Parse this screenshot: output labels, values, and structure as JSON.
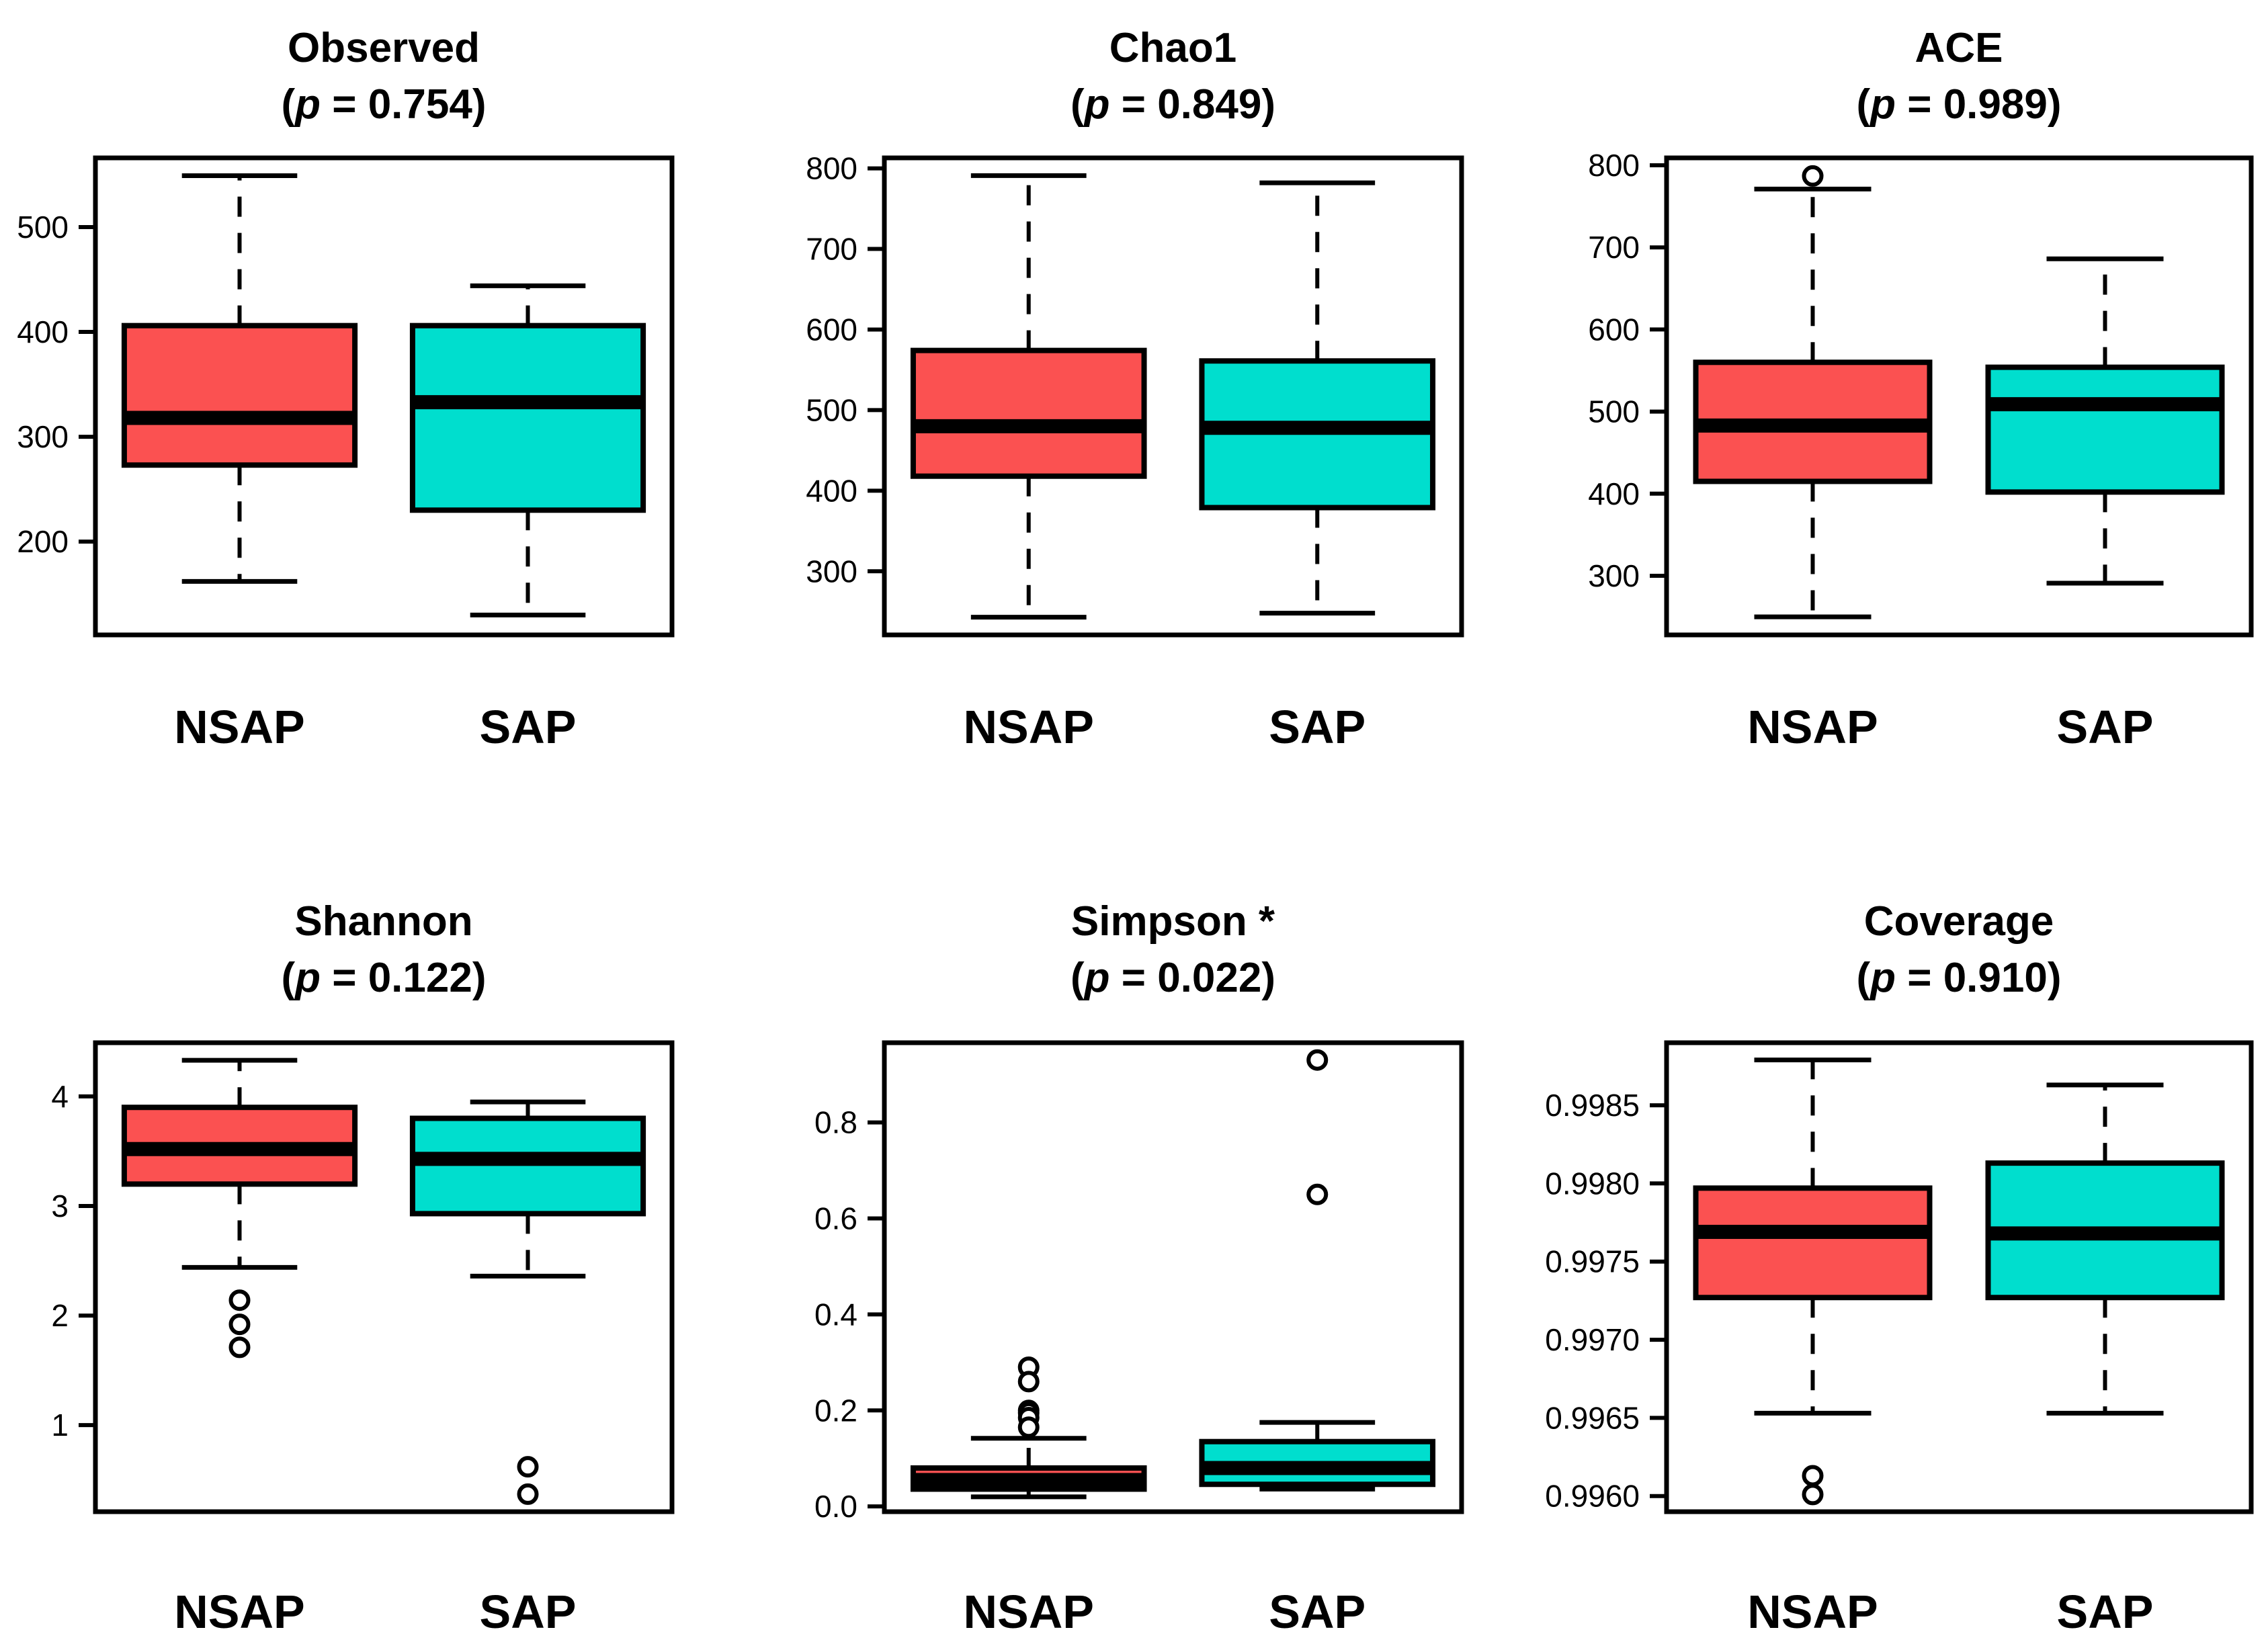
{
  "colors": {
    "nsap_fill": "#FB5151",
    "sap_fill": "#00DECE",
    "stroke": "#000000",
    "background": "#FFFFFF"
  },
  "chart_data": [
    {
      "type": "box",
      "id": "observed",
      "title": "Observed",
      "p_open": "(",
      "p_var": "p",
      "p_rest": " = 0.754)",
      "categories": [
        "NSAP",
        "SAP"
      ],
      "ylim": [
        111,
        566
      ],
      "yticks": [
        200,
        300,
        400,
        500
      ],
      "ytick_labels": [
        "200",
        "300",
        "400",
        "500"
      ],
      "grid": false,
      "series": [
        {
          "name": "NSAP",
          "color": "#FB5151",
          "whisker_low": 162,
          "q1": 273,
          "median": 318,
          "q3": 406,
          "whisker_high": 549,
          "outliers": []
        },
        {
          "name": "SAP",
          "color": "#00DECE",
          "whisker_low": 130,
          "q1": 230,
          "median": 333,
          "q3": 406,
          "whisker_high": 444,
          "outliers": []
        }
      ]
    },
    {
      "type": "box",
      "id": "chao1",
      "title": "Chao1",
      "p_open": "(",
      "p_var": "p",
      "p_rest": " = 0.849)",
      "categories": [
        "NSAP",
        "SAP"
      ],
      "ylim": [
        221,
        813
      ],
      "yticks": [
        300,
        400,
        500,
        600,
        700,
        800
      ],
      "ytick_labels": [
        "300",
        "400",
        "500",
        "600",
        "700",
        "800"
      ],
      "grid": false,
      "series": [
        {
          "name": "NSAP",
          "color": "#FB5151",
          "whisker_low": 243,
          "q1": 418,
          "median": 480,
          "q3": 574,
          "whisker_high": 791,
          "outliers": []
        },
        {
          "name": "SAP",
          "color": "#00DECE",
          "whisker_low": 248,
          "q1": 379,
          "median": 478,
          "q3": 561,
          "whisker_high": 782,
          "outliers": []
        }
      ]
    },
    {
      "type": "box",
      "id": "ace",
      "title": "ACE",
      "p_open": "(",
      "p_var": "p",
      "p_rest": " = 0.989)",
      "categories": [
        "NSAP",
        "SAP"
      ],
      "ylim": [
        228,
        809
      ],
      "yticks": [
        300,
        400,
        500,
        600,
        700,
        800
      ],
      "ytick_labels": [
        "300",
        "400",
        "500",
        "600",
        "700",
        "800"
      ],
      "grid": false,
      "series": [
        {
          "name": "NSAP",
          "color": "#FB5151",
          "whisker_low": 250,
          "q1": 415,
          "median": 483,
          "q3": 560,
          "whisker_high": 771,
          "outliers": [
            787
          ]
        },
        {
          "name": "SAP",
          "color": "#00DECE",
          "whisker_low": 291,
          "q1": 402,
          "median": 509,
          "q3": 554,
          "whisker_high": 686,
          "outliers": []
        }
      ]
    },
    {
      "type": "box",
      "id": "shannon",
      "title": "Shannon",
      "p_open": "(",
      "p_var": "p",
      "p_rest": " = 0.122)",
      "categories": [
        "NSAP",
        "SAP"
      ],
      "ylim": [
        0.21,
        4.49
      ],
      "yticks": [
        1,
        2,
        3,
        4
      ],
      "ytick_labels": [
        "1",
        "2",
        "3",
        "4"
      ],
      "grid": false,
      "series": [
        {
          "name": "NSAP",
          "color": "#FB5151",
          "whisker_low": 2.44,
          "q1": 3.2,
          "median": 3.52,
          "q3": 3.9,
          "whisker_high": 4.33,
          "outliers": [
            2.14,
            1.92,
            1.71
          ]
        },
        {
          "name": "SAP",
          "color": "#00DECE",
          "whisker_low": 2.36,
          "q1": 2.93,
          "median": 3.43,
          "q3": 3.8,
          "whisker_high": 3.95,
          "outliers": [
            0.62,
            0.37
          ]
        }
      ]
    },
    {
      "type": "box",
      "id": "simpson",
      "title": "Simpson *",
      "p_open": "(",
      "p_var": "p",
      "p_rest": " = 0.022)",
      "categories": [
        "NSAP",
        "SAP"
      ],
      "ylim": [
        -0.011,
        0.966
      ],
      "yticks": [
        0.0,
        0.2,
        0.4,
        0.6,
        0.8
      ],
      "ytick_labels": [
        "0.0",
        "0.2",
        "0.4",
        "0.6",
        "0.8"
      ],
      "grid": false,
      "series": [
        {
          "name": "NSAP",
          "color": "#FB5151",
          "whisker_low": 0.02,
          "q1": 0.036,
          "median": 0.055,
          "q3": 0.08,
          "whisker_high": 0.142,
          "outliers": [
            0.29,
            0.26,
            0.2,
            0.195,
            0.185,
            0.165
          ]
        },
        {
          "name": "SAP",
          "color": "#00DECE",
          "whisker_low": 0.036,
          "q1": 0.046,
          "median": 0.08,
          "q3": 0.135,
          "whisker_high": 0.175,
          "outliers": [
            0.93,
            0.65
          ]
        }
      ]
    },
    {
      "type": "box",
      "id": "coverage",
      "title": "Coverage",
      "p_open": "(",
      "p_var": "p",
      "p_rest": " = 0.910)",
      "categories": [
        "NSAP",
        "SAP"
      ],
      "ylim": [
        0.9959,
        0.9989
      ],
      "yticks": [
        0.996,
        0.9965,
        0.997,
        0.9975,
        0.998,
        0.9985
      ],
      "ytick_labels": [
        "0.9960",
        "0.9965",
        "0.9970",
        "0.9975",
        "0.9980",
        "0.9985"
      ],
      "grid": false,
      "series": [
        {
          "name": "NSAP",
          "color": "#FB5151",
          "whisker_low": 0.99653,
          "q1": 0.99727,
          "median": 0.99769,
          "q3": 0.99797,
          "whisker_high": 0.99879,
          "outliers": [
            0.99613,
            0.99601
          ]
        },
        {
          "name": "SAP",
          "color": "#00DECE",
          "whisker_low": 0.99653,
          "q1": 0.99727,
          "median": 0.99768,
          "q3": 0.99813,
          "whisker_high": 0.99863,
          "outliers": []
        }
      ]
    }
  ]
}
